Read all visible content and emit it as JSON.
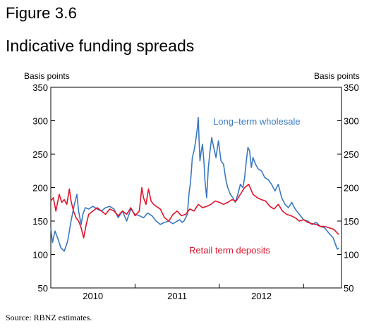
{
  "header": {
    "figure_number": "Figure 3.6",
    "title": "Indicative funding spreads"
  },
  "footer": {
    "source": "Source: RBNZ estimates."
  },
  "chart_data": {
    "type": "line",
    "title": "Indicative funding spreads",
    "ylabel_left": "Basis points",
    "ylabel_right": "Basis points",
    "ylim": [
      50,
      350
    ],
    "yticks": [
      50,
      100,
      150,
      200,
      250,
      300,
      350
    ],
    "xlim": [
      2009.5,
      2012.95
    ],
    "xtick_labels": [
      {
        "label": "2010",
        "x": 2010.0
      },
      {
        "label": "2011",
        "x": 2011.0
      },
      {
        "label": "2012",
        "x": 2012.0
      }
    ],
    "year_boundaries": [
      2009.5,
      2010.5,
      2011.5,
      2012.5
    ],
    "grid": false,
    "legend": "inline labels",
    "series": [
      {
        "name": "Long-term wholesale",
        "color": "#3a78c3",
        "x": [
          2009.5,
          2009.52,
          2009.55,
          2009.58,
          2009.62,
          2009.66,
          2009.7,
          2009.74,
          2009.78,
          2009.81,
          2009.83,
          2009.86,
          2009.88,
          2009.91,
          2009.95,
          2010.0,
          2010.05,
          2010.1,
          2010.15,
          2010.2,
          2010.25,
          2010.3,
          2010.35,
          2010.4,
          2010.45,
          2010.5,
          2010.55,
          2010.6,
          2010.65,
          2010.7,
          2010.75,
          2010.8,
          2010.85,
          2010.9,
          2010.95,
          2011.0,
          2011.03,
          2011.06,
          2011.08,
          2011.1,
          2011.12,
          2011.14,
          2011.16,
          2011.18,
          2011.2,
          2011.22,
          2011.24,
          2011.25,
          2011.26,
          2011.27,
          2011.28,
          2011.3,
          2011.32,
          2011.33,
          2011.35,
          2011.37,
          2011.39,
          2011.41,
          2011.43,
          2011.46,
          2011.49,
          2011.52,
          2011.55,
          2011.58,
          2011.6,
          2011.63,
          2011.66,
          2011.69,
          2011.72,
          2011.75,
          2011.78,
          2011.8,
          2011.82,
          2011.84,
          2011.86,
          2011.88,
          2011.9,
          2011.93,
          2011.96,
          2012.0,
          2012.04,
          2012.08,
          2012.12,
          2012.16,
          2012.2,
          2012.24,
          2012.28,
          2012.32,
          2012.36,
          2012.4,
          2012.45,
          2012.5,
          2012.55,
          2012.6,
          2012.65,
          2012.7,
          2012.75,
          2012.8,
          2012.85,
          2012.88,
          2012.9,
          2012.92
        ],
        "y": [
          140,
          118,
          135,
          125,
          110,
          105,
          120,
          150,
          175,
          190,
          165,
          145,
          160,
          170,
          168,
          172,
          168,
          165,
          170,
          172,
          168,
          155,
          165,
          150,
          168,
          160,
          158,
          155,
          162,
          158,
          150,
          145,
          148,
          150,
          146,
          150,
          152,
          148,
          150,
          155,
          160,
          190,
          210,
          245,
          255,
          270,
          290,
          305,
          270,
          240,
          250,
          265,
          235,
          210,
          185,
          230,
          255,
          275,
          262,
          245,
          270,
          240,
          235,
          210,
          200,
          190,
          185,
          178,
          190,
          205,
          200,
          215,
          240,
          260,
          255,
          230,
          245,
          235,
          228,
          225,
          215,
          212,
          205,
          195,
          205,
          185,
          175,
          170,
          178,
          168,
          160,
          152,
          150,
          145,
          148,
          142,
          140,
          132,
          125,
          115,
          108,
          110
        ]
      },
      {
        "name": "Retail term deposits",
        "color": "#e0142b",
        "x": [
          2009.5,
          2009.53,
          2009.56,
          2009.6,
          2009.63,
          2009.66,
          2009.69,
          2009.72,
          2009.74,
          2009.77,
          2009.8,
          2009.83,
          2009.86,
          2009.89,
          2009.92,
          2009.95,
          2010.0,
          2010.05,
          2010.1,
          2010.15,
          2010.2,
          2010.25,
          2010.3,
          2010.35,
          2010.4,
          2010.45,
          2010.5,
          2010.55,
          2010.58,
          2010.6,
          2010.63,
          2010.66,
          2010.69,
          2010.72,
          2010.75,
          2010.8,
          2010.85,
          2010.9,
          2010.95,
          2011.0,
          2011.05,
          2011.1,
          2011.15,
          2011.2,
          2011.25,
          2011.3,
          2011.35,
          2011.4,
          2011.45,
          2011.5,
          2011.55,
          2011.6,
          2011.65,
          2011.7,
          2011.75,
          2011.8,
          2011.85,
          2011.9,
          2011.95,
          2012.0,
          2012.05,
          2012.1,
          2012.15,
          2012.2,
          2012.25,
          2012.3,
          2012.35,
          2012.4,
          2012.45,
          2012.5,
          2012.55,
          2012.6,
          2012.65,
          2012.7,
          2012.75,
          2012.8,
          2012.85,
          2012.88,
          2012.9,
          2012.92
        ],
        "y": [
          180,
          185,
          165,
          190,
          178,
          182,
          175,
          198,
          180,
          165,
          155,
          150,
          140,
          125,
          145,
          160,
          165,
          170,
          165,
          160,
          168,
          165,
          158,
          165,
          160,
          170,
          158,
          165,
          200,
          185,
          175,
          198,
          180,
          175,
          172,
          168,
          155,
          150,
          160,
          165,
          158,
          160,
          168,
          165,
          175,
          170,
          172,
          175,
          180,
          178,
          175,
          178,
          182,
          180,
          190,
          200,
          205,
          190,
          185,
          182,
          180,
          172,
          168,
          175,
          165,
          160,
          158,
          155,
          150,
          152,
          148,
          146,
          145,
          142,
          142,
          140,
          138,
          135,
          132,
          130
        ]
      }
    ],
    "annotations": [
      {
        "text": "Long–term wholesale",
        "series": "Long-term wholesale"
      },
      {
        "text": "Retail term deposits",
        "series": "Retail term deposits"
      }
    ]
  }
}
